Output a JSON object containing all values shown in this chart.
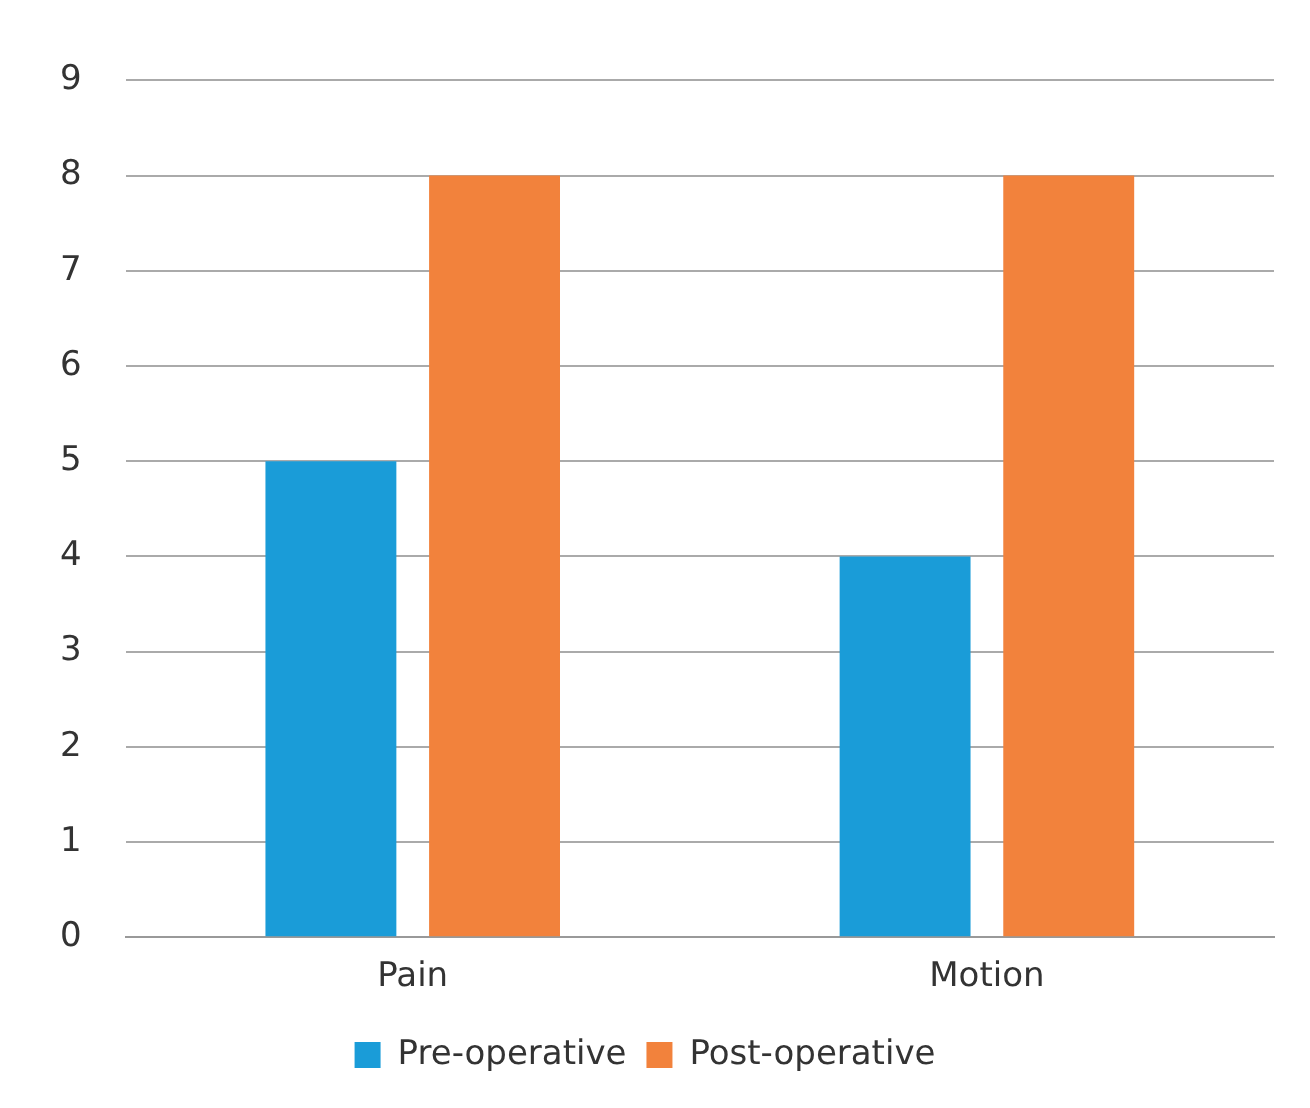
{
  "chart_data": {
    "type": "bar",
    "categories": [
      "Pain",
      "Motion"
    ],
    "series": [
      {
        "name": "Pre-operative",
        "color": "#1a9cd8",
        "values": [
          5,
          4
        ]
      },
      {
        "name": "Post-operative",
        "color": "#f2823c",
        "values": [
          8,
          8
        ]
      }
    ],
    "ylim": [
      0,
      9
    ],
    "yticks": [
      0,
      1,
      2,
      3,
      4,
      5,
      6,
      7,
      8,
      9
    ],
    "grid": "y",
    "legend": "bottom"
  }
}
